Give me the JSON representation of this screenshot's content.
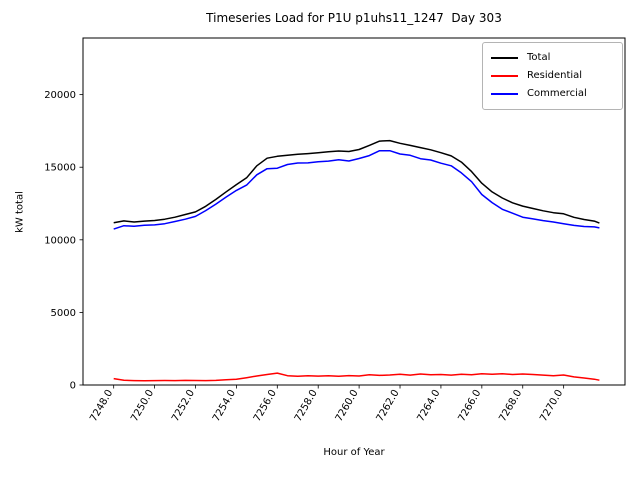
{
  "chart_data": {
    "type": "line",
    "title": "Timeseries Load for P1U p1uhs11_1247  Day 303",
    "xlabel": "Hour of Year",
    "ylabel": "kW total",
    "xlim": [
      7246.5,
      7273.0
    ],
    "ylim": [
      0,
      23900
    ],
    "grid": false,
    "legend_position": "upper right",
    "xtick_values": [
      7248,
      7250,
      7252,
      7254,
      7256,
      7258,
      7260,
      7262,
      7264,
      7266,
      7268,
      7270
    ],
    "xtick_labels": [
      "7248.0",
      "7250.0",
      "7252.0",
      "7254.0",
      "7256.0",
      "7258.0",
      "7260.0",
      "7262.0",
      "7264.0",
      "7266.0",
      "7268.0",
      "7270.0"
    ],
    "ytick_values": [
      0,
      5000,
      10000,
      15000,
      20000
    ],
    "ytick_labels": [
      "0",
      "5000",
      "10000",
      "15000",
      "20000"
    ],
    "x": [
      7248.0,
      7248.5,
      7249.0,
      7249.5,
      7250.0,
      7250.5,
      7251.0,
      7251.5,
      7252.0,
      7252.5,
      7253.0,
      7253.5,
      7254.0,
      7254.5,
      7255.0,
      7255.5,
      7256.0,
      7256.5,
      7257.0,
      7257.5,
      7258.0,
      7258.5,
      7259.0,
      7259.5,
      7260.0,
      7260.5,
      7261.0,
      7261.5,
      7262.0,
      7262.5,
      7263.0,
      7263.5,
      7264.0,
      7264.5,
      7265.0,
      7265.5,
      7266.0,
      7266.5,
      7267.0,
      7267.5,
      7268.0,
      7268.5,
      7269.0,
      7269.5,
      7270.0,
      7270.5,
      7271.0,
      7271.5,
      7271.75
    ],
    "series": [
      {
        "name": "Total",
        "color": "#000000",
        "values": [
          11180,
          11300,
          11230,
          11290,
          11330,
          11420,
          11560,
          11740,
          11920,
          12310,
          12780,
          13310,
          13800,
          14270,
          15100,
          15620,
          15750,
          15830,
          15890,
          15940,
          15990,
          16060,
          16120,
          16080,
          16220,
          16500,
          16800,
          16830,
          16650,
          16500,
          16350,
          16200,
          16000,
          15780,
          15350,
          14700,
          13900,
          13300,
          12880,
          12550,
          12320,
          12160,
          12000,
          11870,
          11790,
          11550,
          11400,
          11290,
          11150
        ]
      },
      {
        "name": "Residential",
        "color": "#ff0000",
        "values": [
          440,
          330,
          300,
          290,
          300,
          310,
          300,
          320,
          310,
          300,
          320,
          360,
          400,
          500,
          620,
          720,
          820,
          640,
          600,
          640,
          610,
          640,
          600,
          650,
          620,
          700,
          660,
          690,
          740,
          680,
          760,
          700,
          720,
          680,
          740,
          700,
          780,
          740,
          780,
          720,
          760,
          720,
          680,
          640,
          690,
          560,
          480,
          400,
          330
        ]
      },
      {
        "name": "Commercial",
        "color": "#0000ff",
        "values": [
          10740,
          10970,
          10930,
          11000,
          11030,
          11110,
          11260,
          11420,
          11610,
          12010,
          12460,
          12950,
          13400,
          13770,
          14480,
          14900,
          14930,
          15190,
          15290,
          15300,
          15380,
          15420,
          15520,
          15430,
          15600,
          15800,
          16140,
          16140,
          15910,
          15820,
          15590,
          15500,
          15280,
          15100,
          14610,
          14000,
          13120,
          12560,
          12100,
          11830,
          11560,
          11440,
          11320,
          11230,
          11100,
          10990,
          10920,
          10890,
          10820
        ]
      }
    ]
  }
}
